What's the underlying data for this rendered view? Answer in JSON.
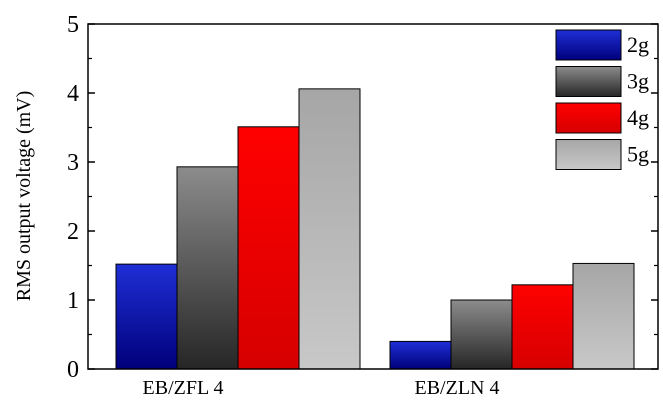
{
  "chart_data": {
    "type": "bar",
    "categories": [
      "EB/ZFL 4",
      "EB/ZLN 4"
    ],
    "series": [
      {
        "name": "2g",
        "values": [
          1.52,
          0.4
        ],
        "color": "#1f2fd6",
        "color_dark": "#00007a"
      },
      {
        "name": "3g",
        "values": [
          2.93,
          1.0
        ],
        "color": "#8c8c8c",
        "color_dark": "#262626"
      },
      {
        "name": "4g",
        "values": [
          3.51,
          1.22
        ],
        "color": "#ff0000",
        "color_dark": "#d60000"
      },
      {
        "name": "5g",
        "values": [
          4.06,
          1.53
        ],
        "color": "#a6a6a6",
        "color_dark": "#c8c8c8"
      }
    ],
    "ylabel": "RMS output voltage (mV)",
    "xlabel": "",
    "ylim": [
      0,
      5
    ],
    "yticks": [
      "0",
      "1",
      "2",
      "3",
      "4",
      "5"
    ],
    "legend_position": "top-right",
    "grid": false
  }
}
